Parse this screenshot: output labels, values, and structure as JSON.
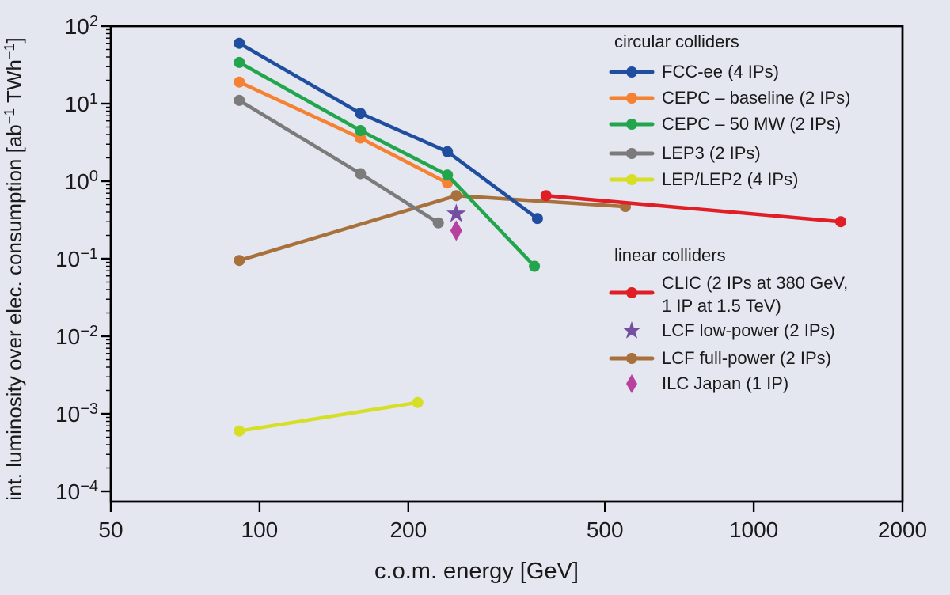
{
  "figure": {
    "background": "#e4e6f0",
    "frame_color": "#000000",
    "text_color": "#1a1a1a"
  },
  "chart_data": {
    "type": "line",
    "title": "",
    "x_axis": {
      "label": "c.o.m. energy [GeV]",
      "scale": "log",
      "range": [
        50,
        2000
      ],
      "ticks": [
        50,
        100,
        200,
        500,
        1000,
        2000
      ],
      "grid": false
    },
    "y_axis": {
      "label": "int. luminosity over elec. consumption [ab⁻¹ TWh⁻¹]",
      "label_parts": [
        {
          "t": "int. luminosity over elec. consumption [ab"
        },
        {
          "t": "−1",
          "sup": true
        },
        {
          "t": " TWh"
        },
        {
          "t": "−1",
          "sup": true
        },
        {
          "t": "]"
        }
      ],
      "scale": "log",
      "range": [
        7.5e-05,
        100
      ],
      "tick_exponents": [
        2,
        1,
        0,
        -1,
        -2,
        -3,
        -4
      ],
      "grid": false
    },
    "series": [
      {
        "id": "lep",
        "label": "LEP/LEP2 (4 IPs)",
        "group": "circular colliders",
        "color": "#d6de26",
        "marker": "circle",
        "line": true,
        "points": [
          [
            91,
            0.0006
          ],
          [
            209,
            0.0014
          ]
        ]
      },
      {
        "id": "lcf-full",
        "label": "LCF full-power (2 IPs)",
        "group": "linear colliders",
        "color": "#a8713c",
        "marker": "circle",
        "line": true,
        "points": [
          [
            91,
            0.095
          ],
          [
            250,
            0.65
          ],
          [
            550,
            0.47
          ]
        ]
      },
      {
        "id": "lep3",
        "label": "LEP3 (2 IPs)",
        "group": "circular colliders",
        "color": "#7b7b7b",
        "marker": "circle",
        "line": true,
        "points": [
          [
            91,
            11
          ],
          [
            160,
            1.25
          ],
          [
            230,
            0.29
          ]
        ]
      },
      {
        "id": "cepc-baseline",
        "label": "CEPC – baseline (2 IPs)",
        "group": "circular colliders",
        "color": "#f58233",
        "marker": "circle",
        "line": true,
        "points": [
          [
            91,
            19
          ],
          [
            160,
            3.6
          ],
          [
            240,
            0.95
          ]
        ]
      },
      {
        "id": "cepc-50mw",
        "label": "CEPC – 50 MW (2 IPs)",
        "group": "circular colliders",
        "color": "#22a54c",
        "marker": "circle",
        "line": true,
        "points": [
          [
            91,
            34
          ],
          [
            160,
            4.5
          ],
          [
            240,
            1.2
          ],
          [
            360,
            0.08
          ]
        ]
      },
      {
        "id": "fcc-ee",
        "label": "FCC-ee (4 IPs)",
        "group": "circular colliders",
        "color": "#1f4e9f",
        "marker": "circle",
        "line": true,
        "points": [
          [
            91,
            60
          ],
          [
            160,
            7.5
          ],
          [
            240,
            2.4
          ],
          [
            365,
            0.33
          ]
        ]
      },
      {
        "id": "clic",
        "label": "CLIC (2 IPs at 380 GeV, 1 IP at 1.5 TeV)",
        "label_lines": [
          "CLIC (2 IPs at 380 GeV,",
          "1 IP at 1.5 TeV)"
        ],
        "group": "linear colliders",
        "color": "#df1f25",
        "marker": "circle",
        "line": true,
        "points": [
          [
            380,
            0.65
          ],
          [
            1500,
            0.3
          ]
        ]
      },
      {
        "id": "lcf-low",
        "label": "LCF low-power (2 IPs)",
        "group": "linear colliders",
        "color": "#744fa0",
        "marker": "star",
        "line": false,
        "points": [
          [
            250,
            0.38
          ]
        ]
      },
      {
        "id": "ilc-japan",
        "label": "ILC Japan (1 IP)",
        "group": "linear colliders",
        "color": "#b8409f",
        "marker": "diamond",
        "line": false,
        "points": [
          [
            250,
            0.23
          ]
        ]
      }
    ],
    "legend": {
      "position": "top-right and middle-right, inside plot",
      "groups": [
        {
          "header": "circular colliders",
          "series_ids": [
            "fcc-ee",
            "cepc-baseline",
            "cepc-50mw",
            "lep3",
            "lep"
          ]
        },
        {
          "header": "linear colliders",
          "series_ids": [
            "clic",
            "lcf-low",
            "lcf-full",
            "ilc-japan"
          ]
        }
      ]
    }
  }
}
